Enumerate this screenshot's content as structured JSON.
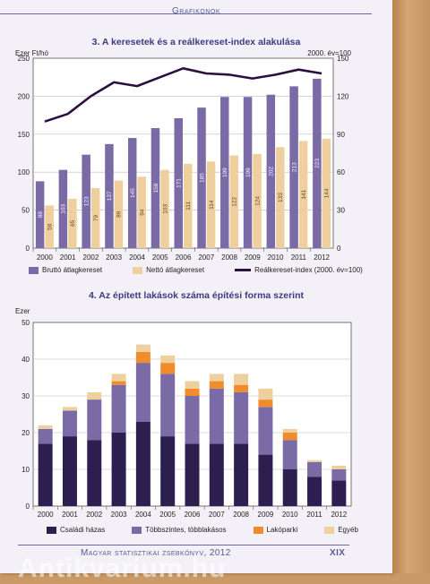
{
  "header": {
    "title": "Grafikonok"
  },
  "footer": {
    "book": "Magyar statisztikai zsebkönyv, 2012",
    "page": "XIX"
  },
  "watermark": "Antikvarium.hu",
  "chart_data": [
    {
      "type": "bar",
      "title": "3. A keresetek és a reálkereset-index alakulása",
      "ylabel_left": "Ezer Ft/hó",
      "ylabel_right": "2000. év=100",
      "ylim": [
        0,
        250
      ],
      "ylim_right": [
        0,
        150
      ],
      "yticks_left": [
        0,
        50,
        100,
        150,
        200,
        250
      ],
      "yticks_right": [
        0,
        30,
        60,
        90,
        120,
        150
      ],
      "categories": [
        "2000",
        "2001",
        "2002",
        "2003",
        "2004",
        "2005",
        "2006",
        "2007",
        "2008",
        "2009",
        "2010",
        "2011",
        "2012"
      ],
      "series": [
        {
          "name": "Bruttó átlagkereset",
          "color": "#7a6aa6",
          "values": [
            88,
            103,
            123,
            137,
            145,
            158,
            171,
            185,
            199,
            199,
            202,
            213,
            223
          ],
          "labels": [
            "88",
            "103",
            "123",
            "137",
            "145",
            "158",
            "171",
            "185",
            "199",
            "199",
            "202",
            "213",
            "223"
          ]
        },
        {
          "name": "Nettó átlagkereset",
          "color": "#efcf9e",
          "values": [
            56,
            65,
            79,
            89,
            94,
            103,
            111,
            114,
            122,
            124,
            133,
            141,
            144
          ],
          "labels": [
            "56",
            "65",
            "79",
            "89",
            "94",
            "103",
            "111",
            "114",
            "122",
            "124",
            "133",
            "141",
            "144"
          ]
        },
        {
          "name": "Reálkereset-index (2000. év=100)",
          "color": "#2a1040",
          "axis": "right",
          "values": [
            100,
            106,
            120,
            131,
            128,
            135,
            142,
            138,
            137,
            134,
            137,
            141,
            138
          ]
        }
      ],
      "grid": true,
      "legend": "bottom"
    },
    {
      "type": "bar",
      "stacked": true,
      "title": "4. Az épített lakások száma építési forma szerint",
      "ylabel": "Ezer",
      "ylim": [
        0,
        50
      ],
      "yticks": [
        0,
        10,
        20,
        30,
        40,
        50
      ],
      "categories": [
        "2000",
        "2001",
        "2002",
        "2003",
        "2004",
        "2005",
        "2006",
        "2007",
        "2008",
        "2009",
        "2010",
        "2011",
        "2012"
      ],
      "series": [
        {
          "name": "Családi házas",
          "color": "#2c1f4f",
          "values": [
            17,
            19,
            18,
            20,
            23,
            19,
            17,
            17,
            17,
            14,
            10,
            8,
            7
          ]
        },
        {
          "name": "Többszintes, többlakásos",
          "color": "#7a6aa6",
          "values": [
            4,
            7,
            11,
            13,
            16,
            17,
            13,
            15,
            14,
            13,
            8,
            4,
            3
          ]
        },
        {
          "name": "Lakóparki",
          "color": "#f08c2c",
          "values": [
            0,
            0,
            0,
            1,
            3,
            3,
            2,
            2,
            2,
            2,
            2,
            0,
            0
          ]
        },
        {
          "name": "Egyéb",
          "color": "#efcf9e",
          "values": [
            1,
            1,
            2,
            2,
            2,
            2,
            2,
            2,
            3,
            3,
            1,
            0.5,
            1
          ]
        }
      ],
      "grid": true,
      "legend": "bottom"
    }
  ]
}
